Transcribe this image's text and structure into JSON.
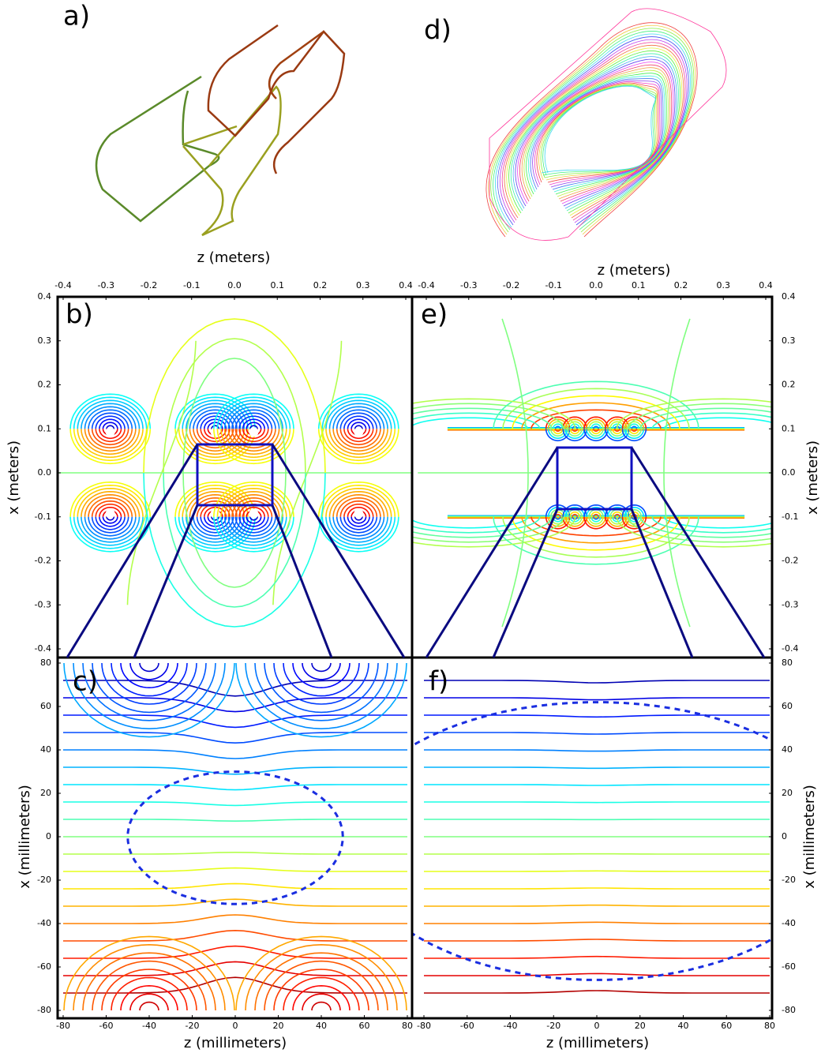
{
  "chart_data": [
    {
      "type": "coil",
      "label": "a)"
    },
    {
      "type": "coil",
      "label": "d)"
    },
    {
      "type": "contour",
      "label": "b)",
      "xlabel": "z (meters)",
      "ylabel": "x (meters)",
      "xlim": [
        -0.4,
        0.4
      ],
      "ylim": [
        -0.4,
        0.4
      ],
      "xticks": [
        -0.4,
        -0.3,
        -0.2,
        -0.1,
        {
          "value": 0,
          "label": "0.0"
        },
        0.1,
        0.2,
        0.3,
        0.4
      ],
      "yticks": [
        -0.4,
        -0.3,
        -0.2,
        -0.1,
        {
          "value": 0,
          "label": "0.0"
        },
        0.1,
        0.2,
        0.3,
        0.4
      ]
    },
    {
      "type": "contour",
      "label": "e)",
      "xlabel": "z (meters)",
      "ylabel": "x (meters)",
      "xlim": [
        -0.4,
        0.4
      ],
      "ylim": [
        -0.4,
        0.4
      ],
      "xticks": [
        -0.4,
        -0.3,
        -0.2,
        -0.1,
        {
          "value": 0,
          "label": "0.0"
        },
        0.1,
        0.2,
        0.3,
        0.4
      ],
      "yticks": [
        -0.4,
        -0.3,
        -0.2,
        -0.1,
        {
          "value": 0,
          "label": "0.0"
        },
        0.1,
        0.2,
        0.3,
        0.4
      ]
    },
    {
      "type": "contour",
      "label": "c)",
      "xlabel": "z (millimeters)",
      "ylabel": "x (millimeters)",
      "xlim": [
        -80,
        80
      ],
      "ylim": [
        -80,
        80
      ],
      "xticks": [
        -80,
        -60,
        -40,
        -20,
        0,
        20,
        40,
        60,
        80
      ],
      "yticks": [
        -80,
        -60,
        -40,
        -20,
        0,
        20,
        40,
        60,
        80
      ]
    },
    {
      "type": "contour",
      "label": "f)",
      "xlabel": "z (millimeters)",
      "ylabel": "x (millimeters)",
      "xlim": [
        -80,
        80
      ],
      "ylim": [
        -80,
        80
      ],
      "xticks": [
        -80,
        -60,
        -40,
        -20,
        0,
        20,
        40,
        60,
        80
      ],
      "yticks": [
        -80,
        -60,
        -40,
        -20,
        0,
        20,
        40,
        60,
        80
      ]
    }
  ]
}
